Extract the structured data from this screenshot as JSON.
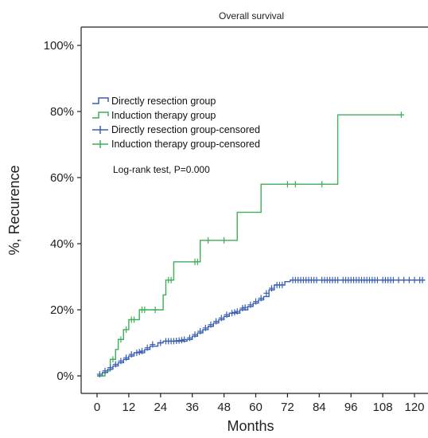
{
  "chart_data": {
    "type": "line",
    "title": "Overall survival",
    "xlabel": "Months",
    "ylabel": "%, Recurence",
    "xlim": [
      0,
      124
    ],
    "ylim": [
      0,
      100
    ],
    "x_ticks": [
      0,
      12,
      24,
      36,
      48,
      60,
      72,
      84,
      96,
      108,
      120
    ],
    "y_ticks": [
      0,
      20,
      40,
      60,
      80,
      100
    ],
    "y_tick_labels": [
      "0%",
      "20%",
      "40%",
      "60%",
      "80%",
      "100%"
    ],
    "grid": false,
    "legend_position": "top-left",
    "annotation": "Log-rank test, P=0.000",
    "legend": [
      {
        "label": "Directly resection group",
        "kind": "line",
        "series": "directly"
      },
      {
        "label": "Induction therapy group",
        "kind": "line",
        "series": "induction"
      },
      {
        "label": "Directly resection group-censored",
        "kind": "censor",
        "series": "directly"
      },
      {
        "label": "Induction therapy group-censored",
        "kind": "censor",
        "series": "induction"
      }
    ],
    "colors": {
      "directly": "#3a5fb0",
      "induction": "#3fae5a",
      "axis": "#222222"
    },
    "series": [
      {
        "id": "directly",
        "steps": [
          [
            0,
            0
          ],
          [
            2,
            1
          ],
          [
            4,
            2
          ],
          [
            6,
            3
          ],
          [
            8,
            4
          ],
          [
            10,
            5
          ],
          [
            12,
            6
          ],
          [
            14,
            7
          ],
          [
            18,
            8
          ],
          [
            20,
            9
          ],
          [
            23,
            10
          ],
          [
            25,
            10.5
          ],
          [
            34,
            11
          ],
          [
            36,
            12
          ],
          [
            38,
            13
          ],
          [
            40,
            14
          ],
          [
            42,
            15
          ],
          [
            44,
            16
          ],
          [
            46,
            17
          ],
          [
            48,
            18
          ],
          [
            50,
            19
          ],
          [
            54,
            20
          ],
          [
            57,
            21
          ],
          [
            59,
            22
          ],
          [
            61,
            23
          ],
          [
            63,
            24
          ],
          [
            65,
            26
          ],
          [
            67,
            27.5
          ],
          [
            71,
            28.5
          ],
          [
            73,
            29
          ],
          [
            124,
            29
          ]
        ],
        "censored": [
          [
            1,
            0.5
          ],
          [
            3,
            1.5
          ],
          [
            5,
            2.5
          ],
          [
            7,
            3.5
          ],
          [
            9,
            4.5
          ],
          [
            11,
            5.5
          ],
          [
            13,
            6.5
          ],
          [
            15,
            7
          ],
          [
            16,
            7.2
          ],
          [
            17,
            7.5
          ],
          [
            19,
            8.5
          ],
          [
            21,
            9.5
          ],
          [
            24,
            10
          ],
          [
            26,
            10.5
          ],
          [
            27,
            10.5
          ],
          [
            28,
            10.5
          ],
          [
            29,
            10.5
          ],
          [
            30,
            10.6
          ],
          [
            31,
            10.7
          ],
          [
            32,
            10.8
          ],
          [
            33,
            11
          ],
          [
            35,
            11.5
          ],
          [
            37,
            12.5
          ],
          [
            39,
            13.5
          ],
          [
            41,
            14.5
          ],
          [
            43,
            15.5
          ],
          [
            45,
            16.5
          ],
          [
            47,
            17.5
          ],
          [
            49,
            18.5
          ],
          [
            51,
            19
          ],
          [
            52,
            19.2
          ],
          [
            53,
            19.5
          ],
          [
            55,
            20.5
          ],
          [
            56,
            20.7
          ],
          [
            58,
            21.5
          ],
          [
            60,
            22.5
          ],
          [
            62,
            23.5
          ],
          [
            64,
            25
          ],
          [
            66,
            26.5
          ],
          [
            68,
            27.5
          ],
          [
            69,
            27.5
          ],
          [
            70,
            27.5
          ],
          [
            74,
            29
          ],
          [
            75,
            29
          ],
          [
            76,
            29
          ],
          [
            77,
            29
          ],
          [
            78,
            29
          ],
          [
            79,
            29
          ],
          [
            80,
            29
          ],
          [
            81,
            29
          ],
          [
            82,
            29
          ],
          [
            83,
            29
          ],
          [
            85,
            29
          ],
          [
            86,
            29
          ],
          [
            87,
            29
          ],
          [
            88,
            29
          ],
          [
            89,
            29
          ],
          [
            90,
            29
          ],
          [
            91,
            29
          ],
          [
            93,
            29
          ],
          [
            94,
            29
          ],
          [
            95,
            29
          ],
          [
            96,
            29
          ],
          [
            97,
            29
          ],
          [
            98,
            29
          ],
          [
            99,
            29
          ],
          [
            100,
            29
          ],
          [
            101,
            29
          ],
          [
            102,
            29
          ],
          [
            103,
            29
          ],
          [
            104,
            29
          ],
          [
            105,
            29
          ],
          [
            106,
            29
          ],
          [
            108,
            29
          ],
          [
            109,
            29
          ],
          [
            110,
            29
          ],
          [
            111,
            29
          ],
          [
            112,
            29
          ],
          [
            114,
            29
          ],
          [
            116,
            29
          ],
          [
            118,
            29
          ],
          [
            120,
            29
          ],
          [
            122,
            29
          ],
          [
            123,
            29
          ]
        ]
      },
      {
        "id": "induction",
        "steps": [
          [
            0,
            0
          ],
          [
            3,
            1.5
          ],
          [
            5,
            5
          ],
          [
            7,
            8
          ],
          [
            8,
            11
          ],
          [
            10,
            14
          ],
          [
            12,
            17
          ],
          [
            16,
            20
          ],
          [
            25,
            24.5
          ],
          [
            26,
            29
          ],
          [
            29,
            34.5
          ],
          [
            39,
            41
          ],
          [
            53,
            49.5
          ],
          [
            62,
            58
          ],
          [
            91,
            79
          ],
          [
            116,
            79
          ]
        ],
        "censored": [
          [
            6,
            5
          ],
          [
            9,
            11
          ],
          [
            11,
            14
          ],
          [
            13,
            17
          ],
          [
            14,
            17
          ],
          [
            17,
            20
          ],
          [
            18,
            20
          ],
          [
            22,
            20
          ],
          [
            27,
            29
          ],
          [
            28,
            29
          ],
          [
            37,
            34.5
          ],
          [
            38,
            34.5
          ],
          [
            42,
            41
          ],
          [
            48,
            41
          ],
          [
            72,
            58
          ],
          [
            75,
            58
          ],
          [
            85,
            58
          ],
          [
            115,
            79
          ]
        ]
      }
    ]
  }
}
